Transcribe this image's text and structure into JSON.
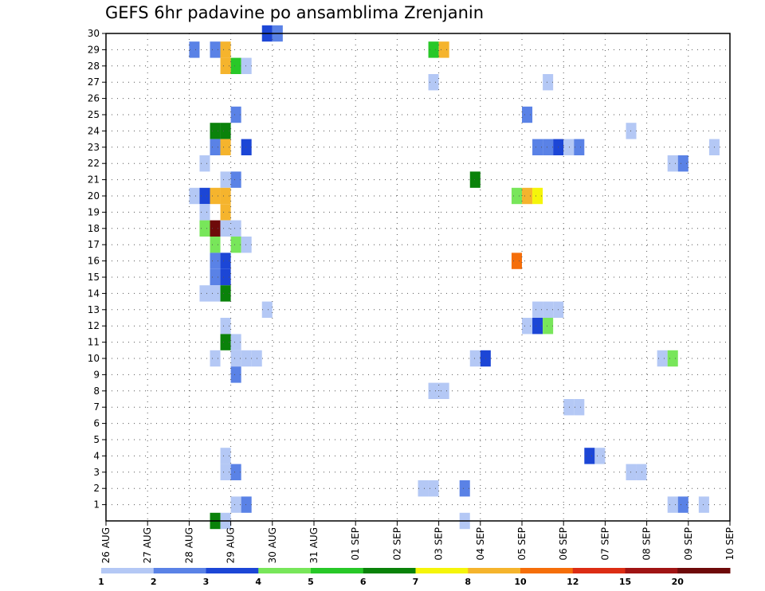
{
  "chart_data": {
    "type": "heatmap",
    "title": "GEFS 6hr padavine po ansamblima Zrenjanin",
    "x_tick_labels": [
      "26 AUG",
      "27 AUG",
      "28 AUG",
      "29 AUG",
      "30 AUG",
      "31 AUG",
      "01 SEP",
      "02 SEP",
      "03 SEP",
      "04 SEP",
      "05 SEP",
      "06 SEP",
      "07 SEP",
      "08 SEP",
      "09 SEP",
      "10 SEP"
    ],
    "x_step_hours": 6,
    "y_tick_labels": [
      1,
      2,
      3,
      4,
      5,
      6,
      7,
      8,
      9,
      10,
      11,
      12,
      13,
      14,
      15,
      16,
      17,
      18,
      19,
      20,
      21,
      22,
      23,
      24,
      25,
      26,
      27,
      28,
      29,
      30
    ],
    "ylim": [
      0,
      30
    ],
    "grid": true,
    "legend_placement": "bottom",
    "legend": {
      "labels": [
        "1",
        "2",
        "3",
        "4",
        "5",
        "6",
        "7",
        "8",
        "10",
        "12",
        "15",
        "20"
      ],
      "colors": [
        "#b4c8f5",
        "#5a82e6",
        "#1c46d6",
        "#78e65a",
        "#28c828",
        "#0a820a",
        "#f5f50a",
        "#f5b42d",
        "#f56e0a",
        "#dc2d14",
        "#a01414",
        "#6e0a0a"
      ]
    },
    "cells": [
      [
        0,
        30,
        15,
        3
      ],
      [
        0,
        30,
        16,
        2
      ],
      [
        0,
        29,
        8,
        2
      ],
      [
        0,
        29,
        10,
        2
      ],
      [
        0,
        29,
        11,
        8
      ],
      [
        0,
        29,
        31,
        5
      ],
      [
        0,
        29,
        32,
        8
      ],
      [
        0,
        28,
        11,
        8
      ],
      [
        0,
        28,
        12,
        5
      ],
      [
        0,
        28,
        13,
        1
      ],
      [
        0,
        27,
        31,
        1
      ],
      [
        0,
        27,
        42,
        1
      ],
      [
        0,
        25,
        12,
        2
      ],
      [
        0,
        25,
        40,
        2
      ],
      [
        0,
        24,
        10,
        6
      ],
      [
        0,
        24,
        11,
        6
      ],
      [
        0,
        24,
        50,
        1
      ],
      [
        0,
        23,
        10,
        2
      ],
      [
        0,
        23,
        11,
        8
      ],
      [
        0,
        23,
        13,
        3
      ],
      [
        0,
        23,
        41,
        2
      ],
      [
        0,
        23,
        42,
        2
      ],
      [
        0,
        23,
        43,
        3
      ],
      [
        0,
        23,
        44,
        1
      ],
      [
        0,
        23,
        45,
        2
      ],
      [
        0,
        23,
        58,
        1
      ],
      [
        0,
        22,
        9,
        1
      ],
      [
        0,
        22,
        54,
        1
      ],
      [
        0,
        22,
        55,
        2
      ],
      [
        0,
        21,
        11,
        1
      ],
      [
        0,
        21,
        12,
        2
      ],
      [
        0,
        21,
        35,
        6
      ],
      [
        0,
        20,
        8,
        1
      ],
      [
        0,
        20,
        9,
        3
      ],
      [
        0,
        20,
        10,
        8
      ],
      [
        0,
        20,
        11,
        8
      ],
      [
        0,
        20,
        39,
        4
      ],
      [
        0,
        20,
        40,
        8
      ],
      [
        0,
        20,
        41,
        7
      ],
      [
        0,
        19,
        9,
        1
      ],
      [
        0,
        19,
        11,
        8
      ],
      [
        0,
        18,
        9,
        4
      ],
      [
        0,
        18,
        10,
        12
      ],
      [
        0,
        18,
        11,
        1
      ],
      [
        0,
        18,
        12,
        1
      ],
      [
        0,
        17,
        10,
        4
      ],
      [
        0,
        17,
        12,
        4
      ],
      [
        0,
        17,
        13,
        1
      ],
      [
        0,
        16,
        39,
        9
      ],
      [
        0,
        16,
        10,
        2
      ],
      [
        0,
        16,
        11,
        3
      ],
      [
        0,
        15,
        10,
        2
      ],
      [
        0,
        15,
        11,
        3
      ],
      [
        0,
        14,
        9,
        1
      ],
      [
        0,
        14,
        10,
        1
      ],
      [
        0,
        14,
        11,
        6
      ],
      [
        0,
        13,
        15,
        1
      ],
      [
        0,
        13,
        41,
        1
      ],
      [
        0,
        13,
        42,
        1
      ],
      [
        0,
        13,
        43,
        1
      ],
      [
        0,
        12,
        11,
        1
      ],
      [
        0,
        12,
        40,
        1
      ],
      [
        0,
        12,
        41,
        3
      ],
      [
        0,
        12,
        42,
        4
      ],
      [
        0,
        11,
        11,
        6
      ],
      [
        0,
        11,
        12,
        1
      ],
      [
        0,
        10,
        10,
        1
      ],
      [
        0,
        10,
        12,
        1
      ],
      [
        0,
        10,
        13,
        1
      ],
      [
        0,
        10,
        14,
        1
      ],
      [
        0,
        10,
        35,
        1
      ],
      [
        0,
        10,
        36,
        3
      ],
      [
        0,
        10,
        53,
        1
      ],
      [
        0,
        10,
        54,
        4
      ],
      [
        0,
        9,
        12,
        2
      ],
      [
        0,
        8,
        31,
        1
      ],
      [
        0,
        8,
        32,
        1
      ],
      [
        0,
        7,
        44,
        1
      ],
      [
        0,
        7,
        45,
        1
      ],
      [
        0,
        4,
        11,
        1
      ],
      [
        0,
        4,
        46,
        3
      ],
      [
        0,
        4,
        47,
        1
      ],
      [
        0,
        3,
        11,
        1
      ],
      [
        0,
        3,
        12,
        2
      ],
      [
        0,
        3,
        50,
        1
      ],
      [
        0,
        3,
        51,
        1
      ],
      [
        0,
        2,
        30,
        1
      ],
      [
        0,
        2,
        31,
        1
      ],
      [
        0,
        2,
        34,
        2
      ],
      [
        0,
        1,
        12,
        1
      ],
      [
        0,
        1,
        13,
        2
      ],
      [
        0,
        1,
        54,
        1
      ],
      [
        0,
        1,
        55,
        2
      ],
      [
        0,
        1,
        57,
        1
      ],
      [
        0,
        0,
        10,
        6
      ],
      [
        0,
        0,
        11,
        1
      ],
      [
        0,
        0,
        34,
        1
      ]
    ]
  }
}
